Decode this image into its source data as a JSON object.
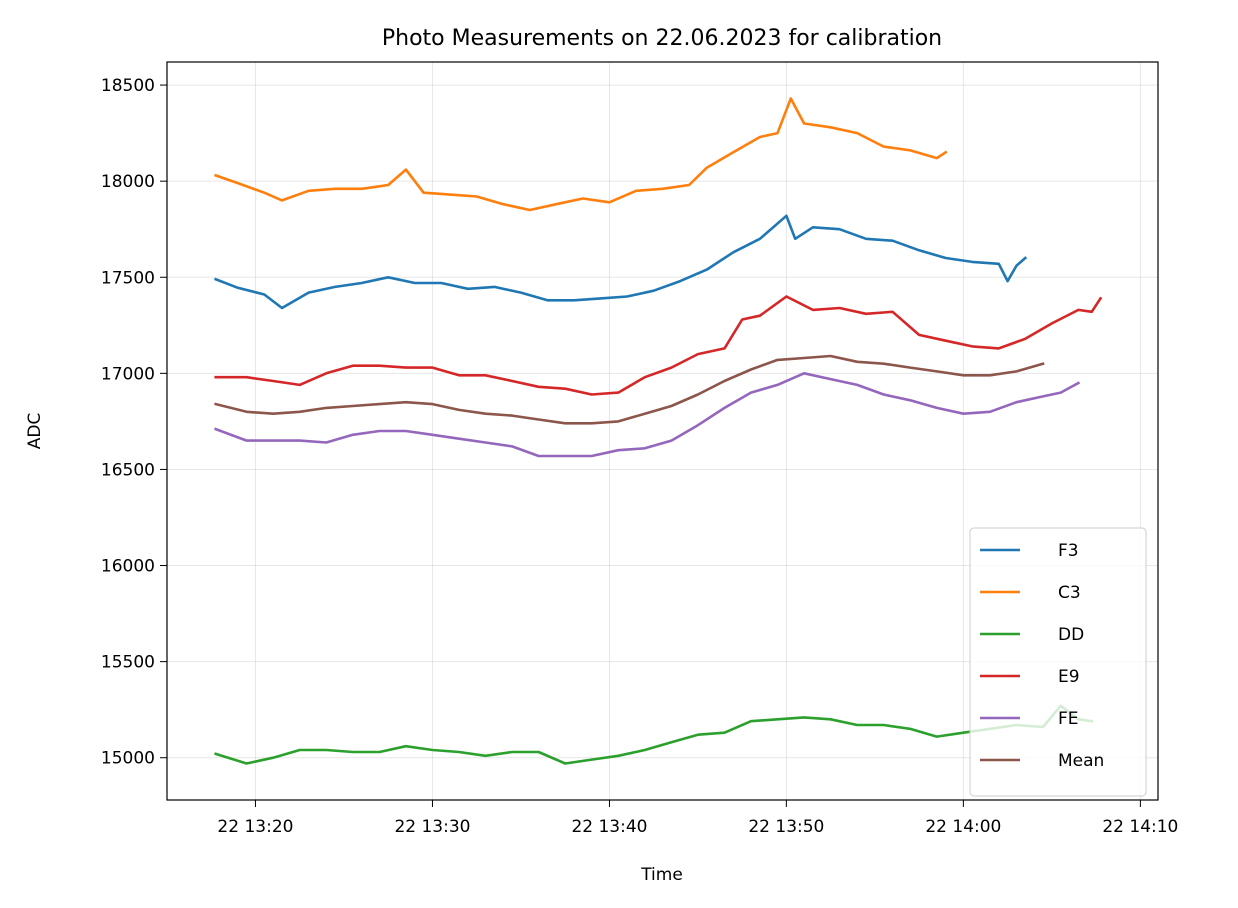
{
  "chart_data": {
    "type": "line",
    "title": "Photo Measurements on 22.06.2023 for calibration",
    "xlabel": "Time",
    "ylabel": "ADC",
    "x_unit": "minutes",
    "xlim": [
      13.25,
      14.1833
    ],
    "ylim": [
      14780,
      18620
    ],
    "xticks": [
      {
        "value": 13.3333,
        "label": "22 13:20"
      },
      {
        "value": 13.5,
        "label": "22 13:30"
      },
      {
        "value": 13.6667,
        "label": "22 13:40"
      },
      {
        "value": 13.8333,
        "label": "22 13:50"
      },
      {
        "value": 14.0,
        "label": "22 14:00"
      },
      {
        "value": 14.1667,
        "label": "22 14:10"
      }
    ],
    "yticks": [
      15000,
      15500,
      16000,
      16500,
      17000,
      17500,
      18000,
      18500
    ],
    "grid": true,
    "legend_position": "bottom-right",
    "series": [
      {
        "name": "F3",
        "color": "#1f77b4",
        "points": [
          [
            "13:17:45",
            17490
          ],
          [
            "13:19:00",
            17445
          ],
          [
            "13:20:30",
            17410
          ],
          [
            "13:21:30",
            17340
          ],
          [
            "13:23:00",
            17420
          ],
          [
            "13:24:30",
            17450
          ],
          [
            "13:26:00",
            17470
          ],
          [
            "13:27:30",
            17500
          ],
          [
            "13:29:00",
            17470
          ],
          [
            "13:30:30",
            17470
          ],
          [
            "13:32:00",
            17440
          ],
          [
            "13:33:30",
            17450
          ],
          [
            "13:35:00",
            17420
          ],
          [
            "13:36:30",
            17380
          ],
          [
            "13:38:00",
            17380
          ],
          [
            "13:39:30",
            17390
          ],
          [
            "13:41:00",
            17400
          ],
          [
            "13:42:30",
            17430
          ],
          [
            "13:44:00",
            17480
          ],
          [
            "13:45:30",
            17540
          ],
          [
            "13:47:00",
            17630
          ],
          [
            "13:48:30",
            17700
          ],
          [
            "13:50:00",
            17820
          ],
          [
            "13:50:30",
            17700
          ],
          [
            "13:51:30",
            17760
          ],
          [
            "13:53:00",
            17750
          ],
          [
            "13:54:30",
            17700
          ],
          [
            "13:56:00",
            17690
          ],
          [
            "13:57:30",
            17640
          ],
          [
            "13:59:00",
            17600
          ],
          [
            "14:00:30",
            17580
          ],
          [
            "14:02:00",
            17570
          ],
          [
            "14:02:30",
            17480
          ],
          [
            "14:03:00",
            17560
          ],
          [
            "14:03:30",
            17600
          ]
        ]
      },
      {
        "name": "C3",
        "color": "#ff7f0e",
        "points": [
          [
            "13:17:45",
            18030
          ],
          [
            "13:19:00",
            17990
          ],
          [
            "13:20:30",
            17940
          ],
          [
            "13:21:30",
            17900
          ],
          [
            "13:23:00",
            17950
          ],
          [
            "13:24:30",
            17960
          ],
          [
            "13:26:00",
            17960
          ],
          [
            "13:27:30",
            17980
          ],
          [
            "13:28:30",
            18060
          ],
          [
            "13:29:30",
            17940
          ],
          [
            "13:31:00",
            17930
          ],
          [
            "13:32:30",
            17920
          ],
          [
            "13:34:00",
            17880
          ],
          [
            "13:35:30",
            17850
          ],
          [
            "13:37:00",
            17880
          ],
          [
            "13:38:30",
            17910
          ],
          [
            "13:40:00",
            17890
          ],
          [
            "13:41:30",
            17950
          ],
          [
            "13:43:00",
            17960
          ],
          [
            "13:44:30",
            17980
          ],
          [
            "13:45:30",
            18070
          ],
          [
            "13:47:00",
            18150
          ],
          [
            "13:48:30",
            18230
          ],
          [
            "13:49:30",
            18250
          ],
          [
            "13:50:15",
            18430
          ],
          [
            "13:51:00",
            18300
          ],
          [
            "13:52:30",
            18280
          ],
          [
            "13:54:00",
            18250
          ],
          [
            "13:55:30",
            18180
          ],
          [
            "13:57:00",
            18160
          ],
          [
            "13:58:30",
            18120
          ],
          [
            "13:59:00",
            18150
          ]
        ]
      },
      {
        "name": "DD",
        "color": "#2ca02c",
        "points": [
          [
            "13:17:45",
            15020
          ],
          [
            "13:19:30",
            14970
          ],
          [
            "13:21:00",
            15000
          ],
          [
            "13:22:30",
            15040
          ],
          [
            "13:24:00",
            15040
          ],
          [
            "13:25:30",
            15030
          ],
          [
            "13:27:00",
            15030
          ],
          [
            "13:28:30",
            15060
          ],
          [
            "13:30:00",
            15040
          ],
          [
            "13:31:30",
            15030
          ],
          [
            "13:33:00",
            15010
          ],
          [
            "13:34:30",
            15030
          ],
          [
            "13:36:00",
            15030
          ],
          [
            "13:37:30",
            14970
          ],
          [
            "13:39:00",
            14990
          ],
          [
            "13:40:30",
            15010
          ],
          [
            "13:42:00",
            15040
          ],
          [
            "13:43:30",
            15080
          ],
          [
            "13:45:00",
            15120
          ],
          [
            "13:46:30",
            15130
          ],
          [
            "13:48:00",
            15190
          ],
          [
            "13:49:30",
            15200
          ],
          [
            "13:51:00",
            15210
          ],
          [
            "13:52:30",
            15200
          ],
          [
            "13:54:00",
            15170
          ],
          [
            "13:55:30",
            15170
          ],
          [
            "13:57:00",
            15150
          ],
          [
            "13:58:30",
            15110
          ],
          [
            "14:00:00",
            15130
          ],
          [
            "14:01:30",
            15150
          ],
          [
            "14:03:00",
            15170
          ],
          [
            "14:04:30",
            15160
          ],
          [
            "14:05:30",
            15270
          ],
          [
            "14:06:30",
            15200
          ],
          [
            "14:07:15",
            15190
          ]
        ]
      },
      {
        "name": "E9",
        "color": "#d62728",
        "points": [
          [
            "13:17:45",
            16980
          ],
          [
            "13:19:30",
            16980
          ],
          [
            "13:21:00",
            16960
          ],
          [
            "13:22:30",
            16940
          ],
          [
            "13:24:00",
            17000
          ],
          [
            "13:25:30",
            17040
          ],
          [
            "13:27:00",
            17040
          ],
          [
            "13:28:30",
            17030
          ],
          [
            "13:30:00",
            17030
          ],
          [
            "13:31:30",
            16990
          ],
          [
            "13:33:00",
            16990
          ],
          [
            "13:34:30",
            16960
          ],
          [
            "13:36:00",
            16930
          ],
          [
            "13:37:30",
            16920
          ],
          [
            "13:39:00",
            16890
          ],
          [
            "13:40:30",
            16900
          ],
          [
            "13:42:00",
            16980
          ],
          [
            "13:43:30",
            17030
          ],
          [
            "13:45:00",
            17100
          ],
          [
            "13:46:30",
            17130
          ],
          [
            "13:47:30",
            17280
          ],
          [
            "13:48:30",
            17300
          ],
          [
            "13:50:00",
            17400
          ],
          [
            "13:51:30",
            17330
          ],
          [
            "13:53:00",
            17340
          ],
          [
            "13:54:30",
            17310
          ],
          [
            "13:56:00",
            17320
          ],
          [
            "13:57:30",
            17200
          ],
          [
            "13:59:00",
            17170
          ],
          [
            "14:00:30",
            17140
          ],
          [
            "14:02:00",
            17130
          ],
          [
            "14:03:30",
            17180
          ],
          [
            "14:05:00",
            17260
          ],
          [
            "14:06:30",
            17330
          ],
          [
            "14:07:15",
            17320
          ],
          [
            "14:07:45",
            17390
          ]
        ]
      },
      {
        "name": "FE",
        "color": "#9467bd",
        "points": [
          [
            "13:17:45",
            16710
          ],
          [
            "13:19:30",
            16650
          ],
          [
            "13:21:00",
            16650
          ],
          [
            "13:22:30",
            16650
          ],
          [
            "13:24:00",
            16640
          ],
          [
            "13:25:30",
            16680
          ],
          [
            "13:27:00",
            16700
          ],
          [
            "13:28:30",
            16700
          ],
          [
            "13:30:00",
            16680
          ],
          [
            "13:31:30",
            16660
          ],
          [
            "13:33:00",
            16640
          ],
          [
            "13:34:30",
            16620
          ],
          [
            "13:36:00",
            16570
          ],
          [
            "13:37:30",
            16570
          ],
          [
            "13:39:00",
            16570
          ],
          [
            "13:40:30",
            16600
          ],
          [
            "13:42:00",
            16610
          ],
          [
            "13:43:30",
            16650
          ],
          [
            "13:45:00",
            16730
          ],
          [
            "13:46:30",
            16820
          ],
          [
            "13:48:00",
            16900
          ],
          [
            "13:49:30",
            16940
          ],
          [
            "13:51:00",
            17000
          ],
          [
            "13:52:30",
            16970
          ],
          [
            "13:54:00",
            16940
          ],
          [
            "13:55:30",
            16890
          ],
          [
            "13:57:00",
            16860
          ],
          [
            "13:58:30",
            16820
          ],
          [
            "14:00:00",
            16790
          ],
          [
            "14:01:30",
            16800
          ],
          [
            "14:03:00",
            16850
          ],
          [
            "14:04:30",
            16880
          ],
          [
            "14:05:30",
            16900
          ],
          [
            "14:06:30",
            16950
          ]
        ]
      },
      {
        "name": "Mean",
        "color": "#8c564b",
        "points": [
          [
            "13:17:45",
            16840
          ],
          [
            "13:19:30",
            16800
          ],
          [
            "13:21:00",
            16790
          ],
          [
            "13:22:30",
            16800
          ],
          [
            "13:24:00",
            16820
          ],
          [
            "13:25:30",
            16830
          ],
          [
            "13:27:00",
            16840
          ],
          [
            "13:28:30",
            16850
          ],
          [
            "13:30:00",
            16840
          ],
          [
            "13:31:30",
            16810
          ],
          [
            "13:33:00",
            16790
          ],
          [
            "13:34:30",
            16780
          ],
          [
            "13:36:00",
            16760
          ],
          [
            "13:37:30",
            16740
          ],
          [
            "13:39:00",
            16740
          ],
          [
            "13:40:30",
            16750
          ],
          [
            "13:42:00",
            16790
          ],
          [
            "13:43:30",
            16830
          ],
          [
            "13:45:00",
            16890
          ],
          [
            "13:46:30",
            16960
          ],
          [
            "13:48:00",
            17020
          ],
          [
            "13:49:30",
            17070
          ],
          [
            "13:51:00",
            17080
          ],
          [
            "13:52:30",
            17090
          ],
          [
            "13:54:00",
            17060
          ],
          [
            "13:55:30",
            17050
          ],
          [
            "13:57:00",
            17030
          ],
          [
            "13:58:30",
            17010
          ],
          [
            "14:00:00",
            16990
          ],
          [
            "14:01:30",
            16990
          ],
          [
            "14:03:00",
            17010
          ],
          [
            "14:04:30",
            17050
          ]
        ]
      }
    ]
  }
}
